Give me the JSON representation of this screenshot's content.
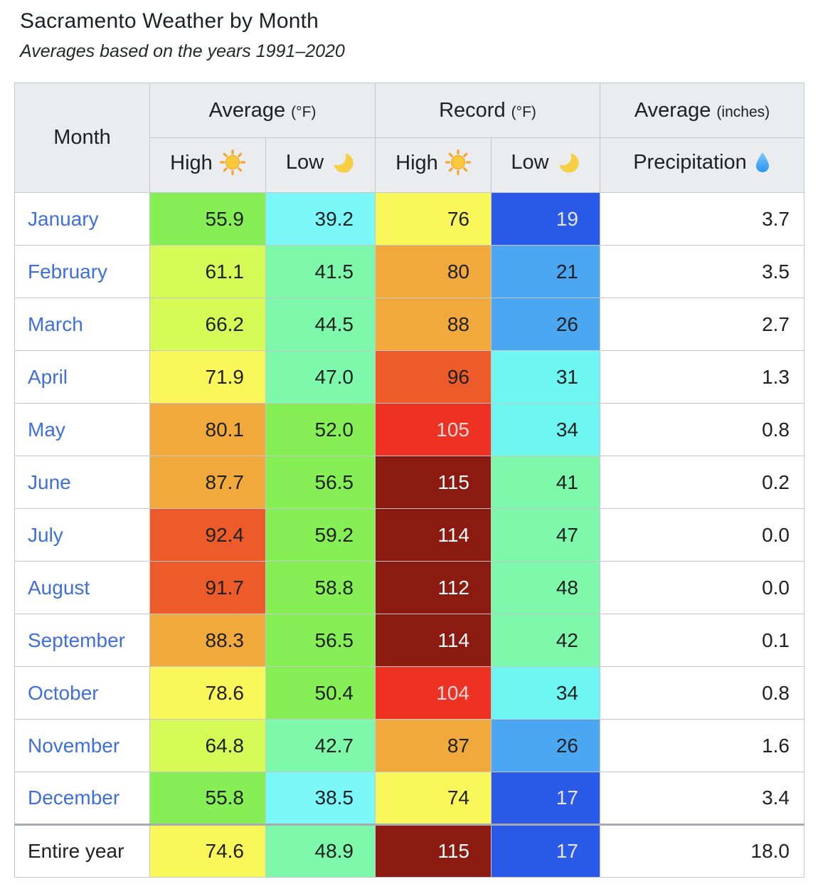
{
  "page": {
    "title": "Sacramento Weather by Month",
    "subtitle": "Averages based on the years 1991–2020"
  },
  "colors": {
    "link": "#3e6fdd",
    "text": "#202122",
    "header_bg": "#eaecf0",
    "border": "#c4c7cb",
    "year_separator": "#a8abb0",
    "page_bg": "#ffffff"
  },
  "table": {
    "headers": {
      "month": "Month",
      "average_f": "Average",
      "average_f_unit": "(°F)",
      "record_f": "Record",
      "record_f_unit": "(°F)",
      "average_in": "Average",
      "average_in_unit": "(inches)",
      "high": "High",
      "low": "Low",
      "precipitation": "Precipitation"
    },
    "icons": {
      "high": "sun-icon",
      "low": "moon-icon",
      "precipitation": "droplet-icon"
    },
    "rows": [
      {
        "month": "January",
        "link": true,
        "avg_high": {
          "v": "55.9",
          "bg": "#85ef55",
          "fg": "#202122"
        },
        "avg_low": {
          "v": "39.2",
          "bg": "#7df8f8",
          "fg": "#202122"
        },
        "rec_high": {
          "v": "76",
          "bg": "#faf75a",
          "fg": "#202122"
        },
        "rec_low": {
          "v": "19",
          "bg": "#2b59e8",
          "fg": "#e6e6e6"
        },
        "precip": "3.7"
      },
      {
        "month": "February",
        "link": true,
        "avg_high": {
          "v": "61.1",
          "bg": "#d7fb56",
          "fg": "#202122"
        },
        "avg_low": {
          "v": "41.5",
          "bg": "#7ef9ac",
          "fg": "#202122"
        },
        "rec_high": {
          "v": "80",
          "bg": "#f2a93c",
          "fg": "#202122"
        },
        "rec_low": {
          "v": "21",
          "bg": "#4ca7f2",
          "fg": "#202122"
        },
        "precip": "3.5"
      },
      {
        "month": "March",
        "link": true,
        "avg_high": {
          "v": "66.2",
          "bg": "#d7fb56",
          "fg": "#202122"
        },
        "avg_low": {
          "v": "44.5",
          "bg": "#7ef9ac",
          "fg": "#202122"
        },
        "rec_high": {
          "v": "88",
          "bg": "#f2a93c",
          "fg": "#202122"
        },
        "rec_low": {
          "v": "26",
          "bg": "#4ca7f2",
          "fg": "#202122"
        },
        "precip": "2.7"
      },
      {
        "month": "April",
        "link": true,
        "avg_high": {
          "v": "71.9",
          "bg": "#faf75a",
          "fg": "#202122"
        },
        "avg_low": {
          "v": "47.0",
          "bg": "#7ef9ac",
          "fg": "#202122"
        },
        "rec_high": {
          "v": "96",
          "bg": "#ee5b2b",
          "fg": "#202122"
        },
        "rec_low": {
          "v": "31",
          "bg": "#6ef7f1",
          "fg": "#202122"
        },
        "precip": "1.3"
      },
      {
        "month": "May",
        "link": true,
        "avg_high": {
          "v": "80.1",
          "bg": "#f2a93c",
          "fg": "#202122"
        },
        "avg_low": {
          "v": "52.0",
          "bg": "#85ef55",
          "fg": "#202122"
        },
        "rec_high": {
          "v": "105",
          "bg": "#ed3123",
          "fg": "#e0dada"
        },
        "rec_low": {
          "v": "34",
          "bg": "#6ef7f1",
          "fg": "#202122"
        },
        "precip": "0.8"
      },
      {
        "month": "June",
        "link": true,
        "avg_high": {
          "v": "87.7",
          "bg": "#f2a93c",
          "fg": "#202122"
        },
        "avg_low": {
          "v": "56.5",
          "bg": "#85ef55",
          "fg": "#202122"
        },
        "rec_high": {
          "v": "115",
          "bg": "#8b1a10",
          "fg": "#ffffff"
        },
        "rec_low": {
          "v": "41",
          "bg": "#7ef9ac",
          "fg": "#202122"
        },
        "precip": "0.2"
      },
      {
        "month": "July",
        "link": true,
        "avg_high": {
          "v": "92.4",
          "bg": "#ee5b2b",
          "fg": "#202122"
        },
        "avg_low": {
          "v": "59.2",
          "bg": "#85ef55",
          "fg": "#202122"
        },
        "rec_high": {
          "v": "114",
          "bg": "#8b1a10",
          "fg": "#ffffff"
        },
        "rec_low": {
          "v": "47",
          "bg": "#7ef9ac",
          "fg": "#202122"
        },
        "precip": "0.0"
      },
      {
        "month": "August",
        "link": true,
        "avg_high": {
          "v": "91.7",
          "bg": "#ee5b2b",
          "fg": "#202122"
        },
        "avg_low": {
          "v": "58.8",
          "bg": "#85ef55",
          "fg": "#202122"
        },
        "rec_high": {
          "v": "112",
          "bg": "#8b1a10",
          "fg": "#ffffff"
        },
        "rec_low": {
          "v": "48",
          "bg": "#7ef9ac",
          "fg": "#202122"
        },
        "precip": "0.0"
      },
      {
        "month": "September",
        "link": true,
        "avg_high": {
          "v": "88.3",
          "bg": "#f2a93c",
          "fg": "#202122"
        },
        "avg_low": {
          "v": "56.5",
          "bg": "#85ef55",
          "fg": "#202122"
        },
        "rec_high": {
          "v": "114",
          "bg": "#8b1a10",
          "fg": "#ffffff"
        },
        "rec_low": {
          "v": "42",
          "bg": "#7ef9ac",
          "fg": "#202122"
        },
        "precip": "0.1"
      },
      {
        "month": "October",
        "link": true,
        "avg_high": {
          "v": "78.6",
          "bg": "#faf75a",
          "fg": "#202122"
        },
        "avg_low": {
          "v": "50.4",
          "bg": "#85ef55",
          "fg": "#202122"
        },
        "rec_high": {
          "v": "104",
          "bg": "#ed3123",
          "fg": "#e0dada"
        },
        "rec_low": {
          "v": "34",
          "bg": "#6ef7f1",
          "fg": "#202122"
        },
        "precip": "0.8"
      },
      {
        "month": "November",
        "link": true,
        "avg_high": {
          "v": "64.8",
          "bg": "#d7fb56",
          "fg": "#202122"
        },
        "avg_low": {
          "v": "42.7",
          "bg": "#7ef9ac",
          "fg": "#202122"
        },
        "rec_high": {
          "v": "87",
          "bg": "#f2a93c",
          "fg": "#202122"
        },
        "rec_low": {
          "v": "26",
          "bg": "#4ca7f2",
          "fg": "#202122"
        },
        "precip": "1.6"
      },
      {
        "month": "December",
        "link": true,
        "avg_high": {
          "v": "55.8",
          "bg": "#85ef55",
          "fg": "#202122"
        },
        "avg_low": {
          "v": "38.5",
          "bg": "#7df8f8",
          "fg": "#202122"
        },
        "rec_high": {
          "v": "74",
          "bg": "#faf75a",
          "fg": "#202122"
        },
        "rec_low": {
          "v": "17",
          "bg": "#2b59e8",
          "fg": "#e6e6e6"
        },
        "precip": "3.4"
      },
      {
        "month": "Entire year",
        "link": false,
        "year": true,
        "avg_high": {
          "v": "74.6",
          "bg": "#faf75a",
          "fg": "#202122"
        },
        "avg_low": {
          "v": "48.9",
          "bg": "#7ef9ac",
          "fg": "#202122"
        },
        "rec_high": {
          "v": "115",
          "bg": "#8b1a10",
          "fg": "#ffffff"
        },
        "rec_low": {
          "v": "17",
          "bg": "#2b59e8",
          "fg": "#e6e6e6"
        },
        "precip": "18.0"
      }
    ]
  },
  "chart_data": {
    "type": "table",
    "title": "Sacramento Weather by Month",
    "subtitle": "Averages based on the years 1991–2020",
    "columns": [
      "Month",
      "Average High (°F)",
      "Average Low (°F)",
      "Record High (°F)",
      "Record Low (°F)",
      "Average Precipitation (inches)"
    ],
    "categories": [
      "January",
      "February",
      "March",
      "April",
      "May",
      "June",
      "July",
      "August",
      "September",
      "October",
      "November",
      "December"
    ],
    "series": [
      {
        "name": "Average High (°F)",
        "values": [
          55.9,
          61.1,
          66.2,
          71.9,
          80.1,
          87.7,
          92.4,
          91.7,
          88.3,
          78.6,
          64.8,
          55.8
        ]
      },
      {
        "name": "Average Low (°F)",
        "values": [
          39.2,
          41.5,
          44.5,
          47.0,
          52.0,
          56.5,
          59.2,
          58.8,
          56.5,
          50.4,
          42.7,
          38.5
        ]
      },
      {
        "name": "Record High (°F)",
        "values": [
          76,
          80,
          88,
          96,
          105,
          115,
          114,
          112,
          114,
          104,
          87,
          74
        ]
      },
      {
        "name": "Record Low (°F)",
        "values": [
          19,
          21,
          26,
          31,
          34,
          41,
          47,
          48,
          42,
          34,
          26,
          17
        ]
      },
      {
        "name": "Average Precipitation (inches)",
        "values": [
          3.7,
          3.5,
          2.7,
          1.3,
          0.8,
          0.2,
          0.0,
          0.0,
          0.1,
          0.8,
          1.6,
          3.4
        ]
      }
    ],
    "entire_year": {
      "avg_high": 74.6,
      "avg_low": 48.9,
      "record_high": 115,
      "record_low": 17,
      "precipitation": 18.0
    }
  }
}
